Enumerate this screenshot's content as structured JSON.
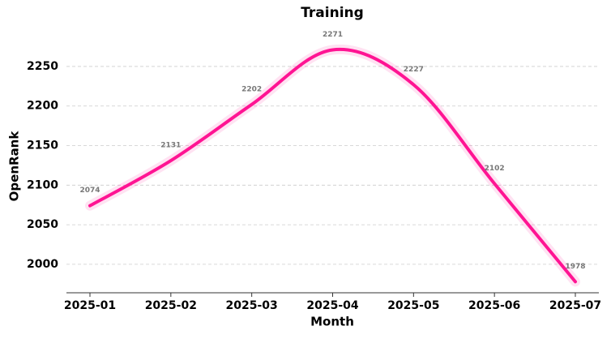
{
  "chart_data": {
    "type": "line",
    "title": "Training",
    "xlabel": "Month",
    "ylabel": "OpenRank",
    "x": [
      "2025-01",
      "2025-02",
      "2025-03",
      "2025-04",
      "2025-05",
      "2025-06",
      "2025-07"
    ],
    "series": [
      {
        "name": "OpenRank",
        "color": "#ff1493",
        "values": [
          2074,
          2131,
          2202,
          2271,
          2227,
          2102,
          1978
        ]
      }
    ],
    "ylim": [
      1964,
      2293
    ],
    "yticks": [
      2000,
      2050,
      2100,
      2150,
      2200,
      2250
    ],
    "grid": true,
    "data_labels": true
  }
}
